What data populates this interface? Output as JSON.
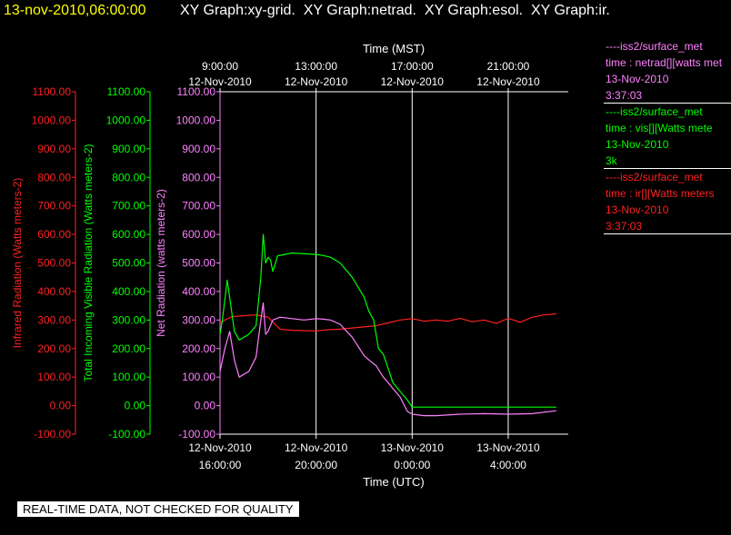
{
  "header": {
    "datetime": "13-nov-2010,06:00:00",
    "tabs": "XY Graph:xy-grid.  XY Graph:netrad.  XY Graph:esol.  XY Graph:ir."
  },
  "legend": [
    {
      "color": "#ff80ff",
      "lines": [
        "----iss2/surface_met",
        "time : netrad[][watts met",
        "13-Nov-2010",
        "3:37:03"
      ]
    },
    {
      "color": "#00ff00",
      "lines": [
        "----iss2/surface_met",
        "time : vis[][Watts mete",
        "13-Nov-2010",
        "3k"
      ]
    },
    {
      "color": "#ff2020",
      "lines": [
        "----iss2/surface_met",
        "time : ir[][Watts meters",
        "13-Nov-2010",
        "3:37:03"
      ]
    }
  ],
  "disclaimer": "REAL-TIME DATA, NOT CHECKED FOR QUALITY",
  "colors": {
    "ir": "#ff2020",
    "vis": "#00ff00",
    "net": "#ff80ff",
    "axis": "#ffffff",
    "grid": "#ffffff",
    "background": "#000000"
  },
  "chart_data": {
    "type": "line",
    "x_unit": "hours since 12-Nov-2010 16:00 UTC (bottom axis labels are UTC, top axis labels are MST)",
    "xlabel_bottom": "Time (UTC)",
    "xlabel_top": "Time (MST)",
    "xlim": [
      0,
      14.5
    ],
    "grid": true,
    "x_ticks_bottom": [
      {
        "x": 0,
        "line1": "12-Nov-2010",
        "line2": "16:00:00"
      },
      {
        "x": 4,
        "line1": "12-Nov-2010",
        "line2": "20:00:00"
      },
      {
        "x": 8,
        "line1": "13-Nov-2010",
        "line2": "0:00:00"
      },
      {
        "x": 12,
        "line1": "13-Nov-2010",
        "line2": "4:00:00"
      }
    ],
    "x_ticks_top": [
      {
        "x": 0,
        "line1": "9:00:00",
        "line2": "12-Nov-2010"
      },
      {
        "x": 4,
        "line1": "13:00:00",
        "line2": "12-Nov-2010"
      },
      {
        "x": 8,
        "line1": "17:00:00",
        "line2": "12-Nov-2010"
      },
      {
        "x": 12,
        "line1": "21:00:00",
        "line2": "12-Nov-2010"
      }
    ],
    "y_axes": [
      {
        "id": "ir",
        "label": "Infrared Radiation (Watts meters-2)",
        "color": "#ff2020",
        "ticks": [
          "-100.00",
          "0.00",
          "100.00",
          "200.00",
          "300.00",
          "400.00",
          "500.00",
          "600.00",
          "700.00",
          "800.00",
          "900.00",
          "1000.00",
          "1100.00"
        ]
      },
      {
        "id": "vis",
        "label": "Total Incoming Visible Radiation (Watts meters-2)",
        "color": "#00ff00",
        "ticks": [
          "-100.00",
          "0.00",
          "100.00",
          "200.00",
          "300.00",
          "400.00",
          "500.00",
          "600.00",
          "700.00",
          "800.00",
          "900.00",
          "1000.00",
          "1100.00"
        ]
      },
      {
        "id": "net",
        "label": "Net Radiation (watts meters-2)",
        "color": "#ff80ff",
        "ticks": [
          "-100.00",
          "0.00",
          "100.00",
          "200.00",
          "300.00",
          "400.00",
          "500.00",
          "600.00",
          "700.00",
          "800.00",
          "900.00",
          "1000.00",
          "1100.00"
        ]
      }
    ],
    "ylim": [
      -100,
      1100
    ],
    "series": [
      {
        "name": "iss2/surface_met time : ir[][Watts meters",
        "axis": "ir",
        "color": "#ff2020",
        "x": [
          0,
          0.2,
          0.5,
          1,
          1.5,
          2,
          2.5,
          3,
          3.5,
          4,
          4.5,
          5,
          5.5,
          6,
          6.5,
          7,
          7.5,
          8,
          8.5,
          9,
          9.5,
          10,
          10.5,
          11,
          11.5,
          12,
          12.5,
          13,
          13.5,
          14
        ],
        "y": [
          290,
          300,
          312,
          315,
          318,
          310,
          268,
          264,
          263,
          262,
          266,
          268,
          272,
          276,
          280,
          290,
          300,
          305,
          296,
          300,
          296,
          306,
          294,
          300,
          288,
          306,
          292,
          310,
          318,
          322
        ]
      },
      {
        "name": "iss2/surface_met time : vis[][Watts mete",
        "axis": "vis",
        "color": "#00ff00",
        "x": [
          0,
          0.1,
          0.3,
          0.45,
          0.6,
          0.8,
          1.2,
          1.5,
          1.7,
          1.8,
          1.9,
          2.0,
          2.1,
          2.2,
          2.4,
          2.7,
          3,
          3.5,
          4,
          4.3,
          4.6,
          5,
          5.5,
          6,
          6.2,
          6.4,
          6.6,
          6.8,
          7.0,
          7.2,
          7.4,
          7.6,
          7.8,
          8,
          8.3,
          9,
          10,
          11,
          12,
          13,
          14
        ],
        "y": [
          250,
          300,
          440,
          350,
          260,
          230,
          250,
          280,
          450,
          600,
          500,
          520,
          510,
          470,
          525,
          530,
          535,
          532,
          530,
          526,
          520,
          500,
          450,
          380,
          330,
          300,
          200,
          180,
          130,
          80,
          60,
          40,
          20,
          -5,
          -5,
          -5,
          -5,
          -5,
          -5,
          -5,
          -5
        ]
      },
      {
        "name": "iss2/surface_met time : netrad[][watts met",
        "axis": "net",
        "color": "#ff80ff",
        "x": [
          0,
          0.2,
          0.4,
          0.6,
          0.8,
          1.2,
          1.5,
          1.7,
          1.8,
          1.9,
          2.0,
          2.2,
          2.5,
          3,
          3.5,
          4,
          4.3,
          4.6,
          5,
          5.5,
          6,
          6.2,
          6.5,
          6.8,
          7.0,
          7.2,
          7.5,
          7.8,
          8,
          8.5,
          9,
          10,
          11,
          12,
          13,
          14
        ],
        "y": [
          120,
          200,
          260,
          160,
          100,
          120,
          170,
          300,
          360,
          250,
          260,
          300,
          310,
          305,
          300,
          305,
          303,
          300,
          285,
          240,
          175,
          160,
          140,
          100,
          80,
          60,
          30,
          -20,
          -30,
          -35,
          -35,
          -30,
          -28,
          -30,
          -28,
          -18
        ]
      }
    ]
  }
}
